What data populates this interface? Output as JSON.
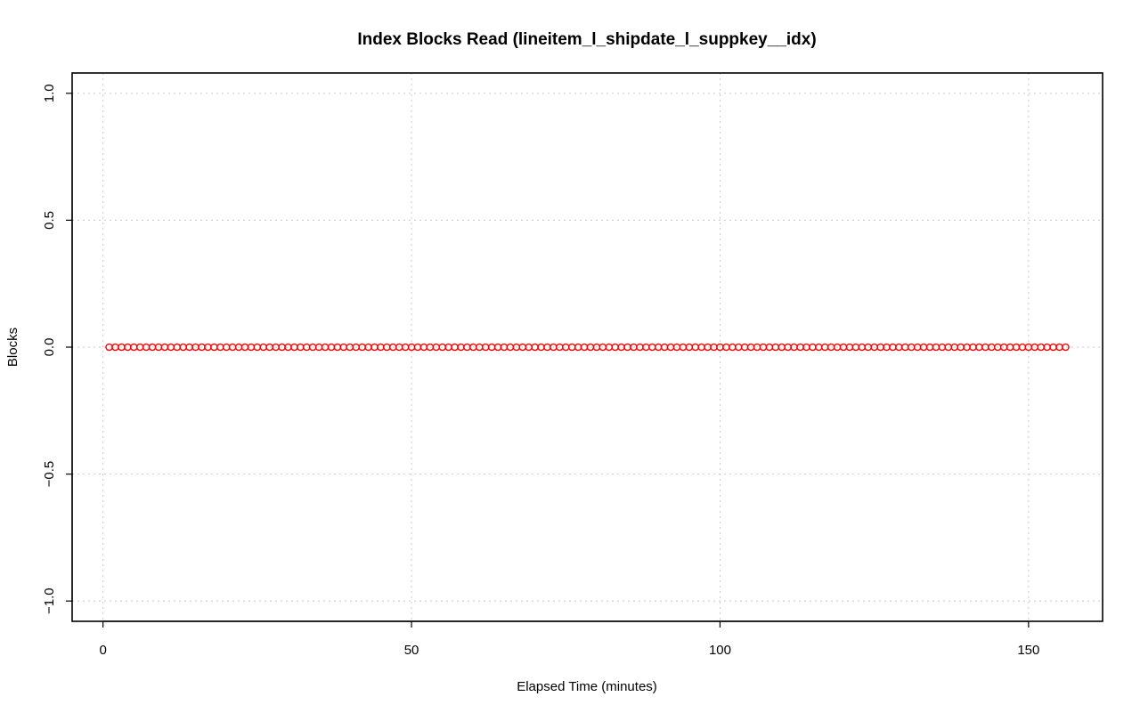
{
  "chart_data": {
    "type": "scatter",
    "title": "Index Blocks Read (lineitem_l_shipdate_l_suppkey__idx)",
    "xlabel": "Elapsed Time (minutes)",
    "ylabel": "Blocks",
    "xlim": [
      -5,
      162
    ],
    "ylim": [
      -1.08,
      1.08
    ],
    "x_ticks": [
      0,
      50,
      100,
      150
    ],
    "x_tick_labels": [
      "0",
      "50",
      "100",
      "150"
    ],
    "y_ticks": [
      -1.0,
      -0.5,
      0.0,
      0.5,
      1.0
    ],
    "y_tick_labels": [
      "−1.0",
      "−0.5",
      "0.0",
      "0.5",
      "1.0"
    ],
    "grid": true,
    "marker_color": "#ff0000",
    "series": [
      {
        "x": [
          1,
          2,
          3,
          4,
          5,
          6,
          7,
          8,
          9,
          10,
          11,
          12,
          13,
          14,
          15,
          16,
          17,
          18,
          19,
          20,
          21,
          22,
          23,
          24,
          25,
          26,
          27,
          28,
          29,
          30,
          31,
          32,
          33,
          34,
          35,
          36,
          37,
          38,
          39,
          40,
          41,
          42,
          43,
          44,
          45,
          46,
          47,
          48,
          49,
          50,
          51,
          52,
          53,
          54,
          55,
          56,
          57,
          58,
          59,
          60,
          61,
          62,
          63,
          64,
          65,
          66,
          67,
          68,
          69,
          70,
          71,
          72,
          73,
          74,
          75,
          76,
          77,
          78,
          79,
          80,
          81,
          82,
          83,
          84,
          85,
          86,
          87,
          88,
          89,
          90,
          91,
          92,
          93,
          94,
          95,
          96,
          97,
          98,
          99,
          100,
          101,
          102,
          103,
          104,
          105,
          106,
          107,
          108,
          109,
          110,
          111,
          112,
          113,
          114,
          115,
          116,
          117,
          118,
          119,
          120,
          121,
          122,
          123,
          124,
          125,
          126,
          127,
          128,
          129,
          130,
          131,
          132,
          133,
          134,
          135,
          136,
          137,
          138,
          139,
          140,
          141,
          142,
          143,
          144,
          145,
          146,
          147,
          148,
          149,
          150,
          151,
          152,
          153,
          154,
          155,
          156
        ],
        "y": [
          0,
          0,
          0,
          0,
          0,
          0,
          0,
          0,
          0,
          0,
          0,
          0,
          0,
          0,
          0,
          0,
          0,
          0,
          0,
          0,
          0,
          0,
          0,
          0,
          0,
          0,
          0,
          0,
          0,
          0,
          0,
          0,
          0,
          0,
          0,
          0,
          0,
          0,
          0,
          0,
          0,
          0,
          0,
          0,
          0,
          0,
          0,
          0,
          0,
          0,
          0,
          0,
          0,
          0,
          0,
          0,
          0,
          0,
          0,
          0,
          0,
          0,
          0,
          0,
          0,
          0,
          0,
          0,
          0,
          0,
          0,
          0,
          0,
          0,
          0,
          0,
          0,
          0,
          0,
          0,
          0,
          0,
          0,
          0,
          0,
          0,
          0,
          0,
          0,
          0,
          0,
          0,
          0,
          0,
          0,
          0,
          0,
          0,
          0,
          0,
          0,
          0,
          0,
          0,
          0,
          0,
          0,
          0,
          0,
          0,
          0,
          0,
          0,
          0,
          0,
          0,
          0,
          0,
          0,
          0,
          0,
          0,
          0,
          0,
          0,
          0,
          0,
          0,
          0,
          0,
          0,
          0,
          0,
          0,
          0,
          0,
          0,
          0,
          0,
          0,
          0,
          0,
          0,
          0,
          0,
          0,
          0,
          0,
          0,
          0,
          0,
          0,
          0,
          0,
          0,
          0
        ]
      }
    ]
  }
}
